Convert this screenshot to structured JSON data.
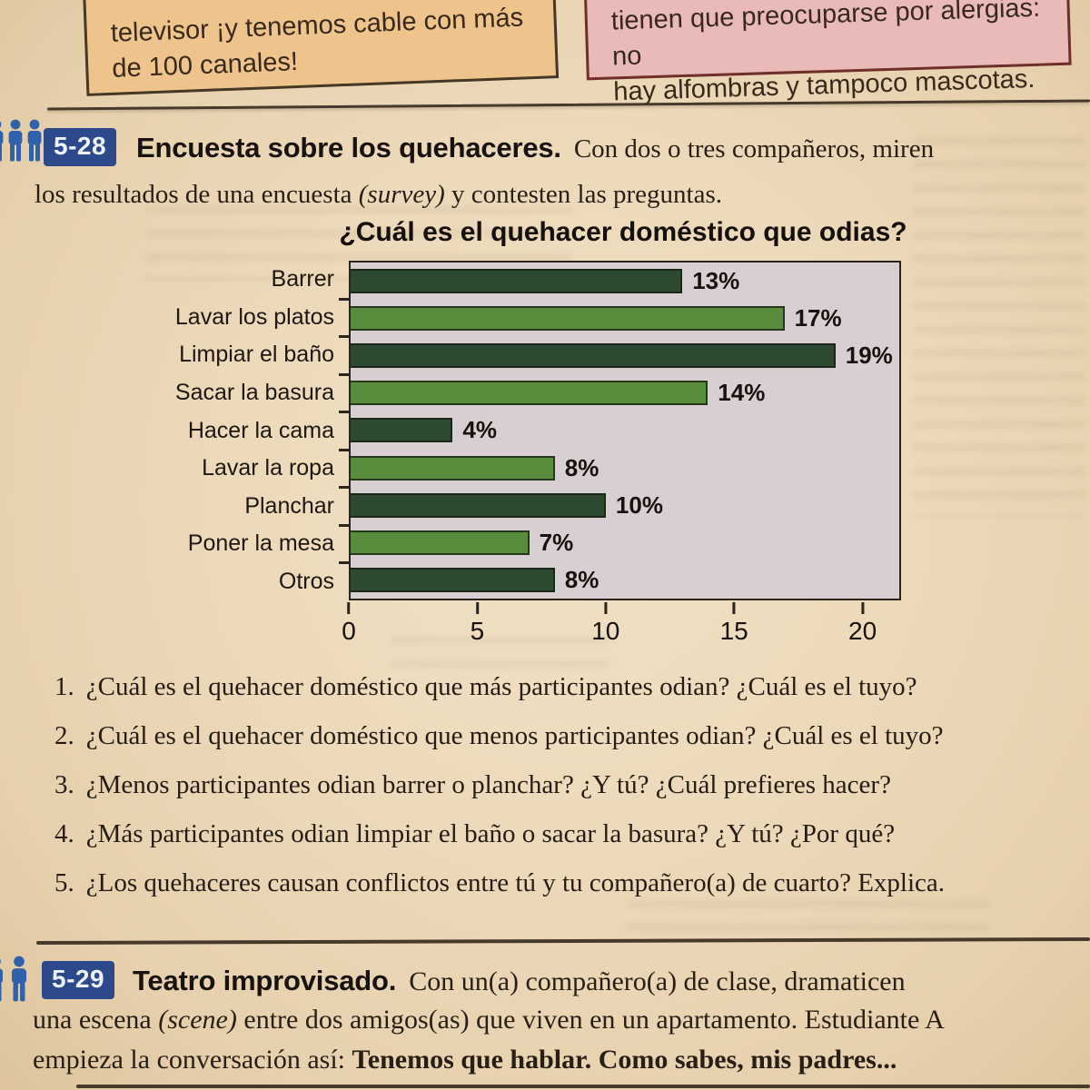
{
  "speech_boxes": {
    "left": {
      "line1": "televisor ¡y tenemos cable con más",
      "line2": "de 100 canales!",
      "bg": "#eec48c",
      "border": "#453827"
    },
    "right": {
      "line1": "tienen que preocuparse por alergias: no",
      "line2": "hay alfombras y tampoco mascotas.",
      "bg": "#e9bab8",
      "border": "#6f2f2a"
    }
  },
  "exercise_5_28": {
    "badge": "5-28",
    "title": "Encuesta sobre los quehaceres.",
    "intro_line1": "Con dos o tres compañeros, miren",
    "intro_line2_pre": "los resultados de una encuesta ",
    "intro_line2_italic": "(survey)",
    "intro_line2_post": " y contesten las preguntas.",
    "questions": [
      {
        "num": "1.",
        "text": "¿Cuál es el quehacer doméstico que más participantes odian? ¿Cuál es el tuyo?"
      },
      {
        "num": "2.",
        "text": "¿Cuál es el quehacer doméstico que menos participantes odian? ¿Cuál es el tuyo?"
      },
      {
        "num": "3.",
        "text": "¿Menos participantes odian barrer o planchar? ¿Y tú? ¿Cuál prefieres hacer?"
      },
      {
        "num": "4.",
        "text": "¿Más participantes odian limpiar el baño o sacar la basura? ¿Y tú? ¿Por qué?"
      },
      {
        "num": "5.",
        "text": "¿Los quehaceres causan conflictos entre tú y tu compañero(a) de cuarto? Explica."
      }
    ]
  },
  "chart_data": {
    "type": "bar",
    "orientation": "horizontal",
    "title": "¿Cuál es el quehacer doméstico que odias?",
    "categories": [
      "Barrer",
      "Lavar los platos",
      "Limpiar el baño",
      "Sacar la basura",
      "Hacer la cama",
      "Lavar la ropa",
      "Planchar",
      "Poner la mesa",
      "Otros"
    ],
    "values": [
      13,
      17,
      19,
      14,
      4,
      8,
      10,
      7,
      8
    ],
    "value_labels": [
      "13%",
      "17%",
      "19%",
      "14%",
      "4%",
      "8%",
      "10%",
      "7%",
      "8%"
    ],
    "unit": "percent",
    "xlabel": "",
    "ylabel": "",
    "xlim": [
      0,
      21.5
    ],
    "xticks": [
      0,
      5,
      10,
      15,
      20
    ],
    "grid": false,
    "legend": "none",
    "bar_colors_alternate": [
      "#2d4a30",
      "#5a8c3e"
    ],
    "plot_bg": "#d8cfd3"
  },
  "exercise_5_29": {
    "badge": "5-29",
    "title": "Teatro improvisado.",
    "line1": "Con un(a) compañero(a) de clase, dramaticen",
    "line2_pre": "una escena ",
    "line2_italic": "(scene)",
    "line2_post": " entre dos amigos(as) que viven en un apartamento. Estudiante A",
    "line3_pre": "empieza la conversación así: ",
    "line3_bold": "Tenemos que hablar. Como sabes, mis padres..."
  },
  "colors": {
    "badge_bg": "#2c498c",
    "badge_text": "#eef1f7",
    "icon_blue": "#2f62aa",
    "rule": "#453a2b",
    "text_dark": "#241d15",
    "bar_dark_green": "#2d4a30",
    "bar_light_green": "#5a8c3e",
    "plot_bg": "#d8cfd3"
  }
}
